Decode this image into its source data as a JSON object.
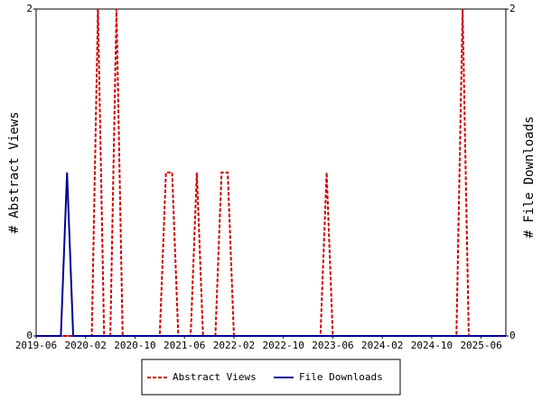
{
  "chart_data": {
    "type": "line",
    "categories": [
      "2019-06",
      null,
      null,
      null,
      null,
      null,
      null,
      null,
      "2020-02",
      null,
      null,
      null,
      null,
      null,
      null,
      null,
      "2020-10",
      null,
      null,
      null,
      null,
      null,
      null,
      null,
      "2021-06",
      null,
      null,
      null,
      null,
      null,
      null,
      null,
      "2022-02",
      null,
      null,
      null,
      null,
      null,
      null,
      null,
      "2022-10",
      null,
      null,
      null,
      null,
      null,
      null,
      null,
      "2023-06",
      null,
      null,
      null,
      null,
      null,
      null,
      null,
      "2024-02",
      null,
      null,
      null,
      null,
      null,
      null,
      null,
      "2024-10",
      null,
      null,
      null,
      null,
      null,
      null,
      null,
      "2025-06",
      null,
      null,
      null,
      null
    ],
    "y_label": "# Abstract Views",
    "y2_label": "# File Downloads",
    "ylim": [
      0,
      2
    ],
    "yticks": [
      0,
      2
    ],
    "y2lim": [
      0,
      2
    ],
    "y2ticks": [
      0,
      2
    ],
    "series": [
      {
        "name": "Abstract Views",
        "color": "#cc0000",
        "dashed": true,
        "values": [
          0,
          0,
          0,
          0,
          0,
          0,
          0,
          0,
          0,
          0,
          2,
          0,
          0,
          2,
          0,
          0,
          0,
          0,
          0,
          0,
          0,
          1,
          1,
          0,
          0,
          0,
          1,
          0,
          0,
          0,
          1,
          1,
          0,
          0,
          0,
          0,
          0,
          0,
          0,
          0,
          0,
          0,
          0,
          0,
          0,
          0,
          0,
          1,
          0,
          0,
          0,
          0,
          0,
          0,
          0,
          0,
          0,
          0,
          0,
          0,
          0,
          0,
          0,
          0,
          0,
          0,
          0,
          0,
          0,
          2,
          0,
          0,
          0,
          0,
          0,
          0,
          0
        ]
      },
      {
        "name": "File Downloads",
        "color": "#000099",
        "dashed": false,
        "axis": "y2",
        "values": [
          0,
          0,
          0,
          0,
          0,
          1,
          0,
          0,
          0,
          0,
          0,
          0,
          0,
          0,
          0,
          0,
          0,
          0,
          0,
          0,
          0,
          0,
          0,
          0,
          0,
          0,
          0,
          0,
          0,
          0,
          0,
          0,
          0,
          0,
          0,
          0,
          0,
          0,
          0,
          0,
          0,
          0,
          0,
          0,
          0,
          0,
          0,
          0,
          0,
          0,
          0,
          0,
          0,
          0,
          0,
          0,
          0,
          0,
          0,
          0,
          0,
          0,
          0,
          0,
          0,
          0,
          0,
          0,
          0,
          0,
          0,
          0,
          0,
          0,
          0,
          0,
          0
        ]
      }
    ]
  }
}
